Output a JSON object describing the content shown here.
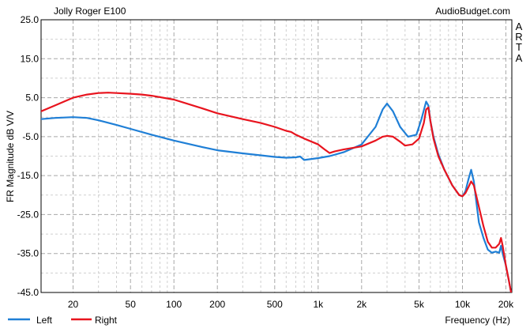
{
  "chart_data": {
    "type": "line",
    "title": "Jolly Roger E100",
    "source_label": "AudioBudget.com",
    "side_label": [
      "A",
      "R",
      "T",
      "A"
    ],
    "xlabel": "Frequency (Hz)",
    "ylabel": "FR Magnitude dB V/V",
    "x_scale": "log",
    "xlim": [
      12,
      22000
    ],
    "ylim": [
      -45,
      25
    ],
    "grid": true,
    "legend_position": "bottom-left",
    "x_ticks": [
      20,
      50,
      100,
      200,
      500,
      1000,
      2000,
      5000,
      10000,
      20000
    ],
    "x_tick_labels": [
      "20",
      "50",
      "100",
      "200",
      "500",
      "1k",
      "2k",
      "5k",
      "10k",
      "20k"
    ],
    "y_ticks": [
      25,
      15,
      5,
      -5,
      -15,
      -25,
      -35,
      -45
    ],
    "y_tick_labels": [
      "25.0",
      "15.0",
      "5.0",
      "-5.0",
      "-15.0",
      "-25.0",
      "-35.0",
      "-45.0"
    ],
    "series": [
      {
        "name": "Left",
        "color": "#1f7fd6",
        "x": [
          12,
          15,
          20,
          25,
          30,
          40,
          50,
          70,
          100,
          150,
          200,
          300,
          400,
          500,
          600,
          700,
          750,
          800,
          1000,
          1200,
          1500,
          2000,
          2500,
          2800,
          3000,
          3300,
          3700,
          4200,
          4800,
          5200,
          5600,
          5800,
          6000,
          6300,
          6800,
          7500,
          8500,
          9500,
          10000,
          10500,
          11000,
          11500,
          12000,
          12500,
          13000,
          14000,
          15000,
          16000,
          17000,
          18000,
          18500,
          19000,
          20000,
          21000,
          22000
        ],
        "y": [
          -0.5,
          -0.2,
          0,
          -0.2,
          -0.8,
          -2,
          -3,
          -4.5,
          -6,
          -7.5,
          -8.5,
          -9.3,
          -9.8,
          -10.2,
          -10.4,
          -10.3,
          -10.1,
          -11,
          -10.5,
          -10,
          -9,
          -7,
          -2.5,
          2,
          3.5,
          1.5,
          -2.5,
          -5,
          -4.5,
          -0.5,
          4,
          3,
          -1,
          -5,
          -9.5,
          -13.5,
          -17.5,
          -20,
          -20.3,
          -19,
          -16,
          -13.5,
          -16.5,
          -22,
          -27,
          -31,
          -34,
          -34.8,
          -34.5,
          -34.8,
          -33,
          -35,
          -38,
          -42,
          -46
        ]
      },
      {
        "name": "Right",
        "color": "#e8141e",
        "x": [
          12,
          15,
          20,
          25,
          30,
          35,
          40,
          50,
          60,
          70,
          100,
          150,
          200,
          300,
          400,
          500,
          600,
          650,
          700,
          800,
          1000,
          1100,
          1200,
          1300,
          1500,
          2000,
          2500,
          2800,
          3000,
          3300,
          3700,
          4000,
          4500,
          5000,
          5400,
          5600,
          5800,
          6000,
          6300,
          6800,
          7500,
          8500,
          9500,
          10000,
          10500,
          11000,
          11500,
          12000,
          13000,
          14000,
          15000,
          16000,
          17000,
          18000,
          18500,
          19000,
          20000,
          21000,
          22000
        ],
        "y": [
          1.5,
          3,
          5,
          5.8,
          6.2,
          6.3,
          6.2,
          6,
          5.8,
          5.5,
          4.5,
          2.5,
          1,
          -0.5,
          -1.5,
          -2.5,
          -3.5,
          -3.8,
          -4.5,
          -5.5,
          -7,
          -8.2,
          -9.2,
          -8.8,
          -8.3,
          -7.5,
          -6,
          -5,
          -4.8,
          -5,
          -6.3,
          -7.3,
          -7,
          -5.5,
          -1.5,
          2,
          2.5,
          -1,
          -5.5,
          -10,
          -13.5,
          -17.5,
          -20,
          -20.3,
          -19.5,
          -18,
          -16.5,
          -17.5,
          -23,
          -28,
          -32,
          -33.5,
          -33.5,
          -32.5,
          -31,
          -33,
          -38,
          -42,
          -46
        ]
      }
    ]
  }
}
